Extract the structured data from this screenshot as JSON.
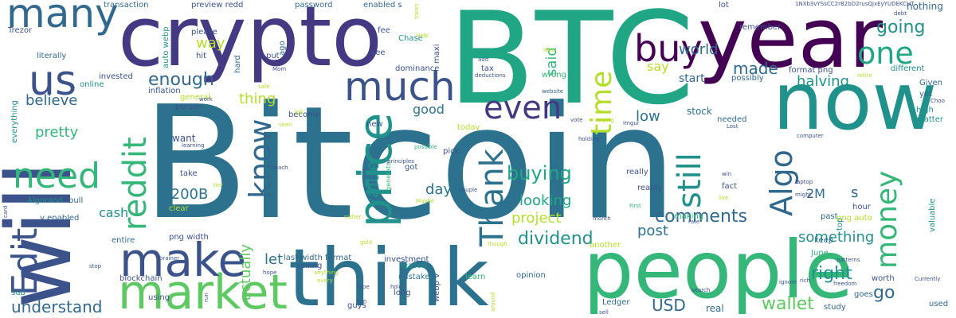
{
  "palette": {
    "dark_purple": "#440154",
    "indigo": "#3b528b",
    "blue": "#31688e",
    "teal": "#21918c",
    "green": "#35b779",
    "lime": "#5ec962",
    "yellow": "#b5de2b"
  },
  "words": [
    {
      "text": "Bitcoin",
      "color": "#2c728e"
    },
    {
      "text": "BTC",
      "color": "#21a685"
    },
    {
      "text": "will",
      "color": "#3b528b"
    },
    {
      "text": "crypto",
      "color": "#443983"
    },
    {
      "text": "year",
      "color": "#440154"
    },
    {
      "text": "now",
      "color": "#21918c"
    },
    {
      "text": "people",
      "color": "#35b779"
    },
    {
      "text": "think",
      "color": "#2c728e"
    },
    {
      "text": "market",
      "color": "#5ec962"
    },
    {
      "text": "make",
      "color": "#3b528b"
    },
    {
      "text": "price",
      "color": "#21918c"
    },
    {
      "text": "much",
      "color": "#3b528b"
    },
    {
      "text": "many",
      "color": "#31688e"
    },
    {
      "text": "us",
      "color": "#3b528b"
    },
    {
      "text": "need",
      "color": "#35b779"
    },
    {
      "text": "Edit",
      "color": "#3b528b"
    },
    {
      "text": "reddit",
      "color": "#35b779"
    },
    {
      "text": "know",
      "color": "#31688e"
    },
    {
      "text": "even",
      "color": "#443983"
    },
    {
      "text": "time",
      "color": "#b5de2b"
    },
    {
      "text": "buy",
      "color": "#440154"
    },
    {
      "text": "one",
      "color": "#21a685"
    },
    {
      "text": "Thank",
      "color": "#2c728e"
    },
    {
      "text": "still",
      "color": "#21918c"
    },
    {
      "text": "Algo",
      "color": "#31688e"
    },
    {
      "text": "money",
      "color": "#35b779"
    },
    {
      "text": "enough",
      "color": "#31688e"
    },
    {
      "text": "way",
      "color": "#b5de2b"
    },
    {
      "text": "going",
      "color": "#21918c"
    },
    {
      "text": "made",
      "color": "#31688e"
    },
    {
      "text": "halving",
      "color": "#21918c"
    },
    {
      "text": "world",
      "color": "#31688e"
    },
    {
      "text": "said",
      "color": "#35b779"
    },
    {
      "text": "buying",
      "color": "#21a685"
    },
    {
      "text": "comments",
      "color": "#31688e"
    },
    {
      "text": "dividend",
      "color": "#21918c"
    },
    {
      "text": "wallet",
      "color": "#5ec962"
    },
    {
      "text": "value",
      "color": "#21918c"
    },
    {
      "text": "let",
      "color": "#2c728e"
    },
    {
      "text": "actually",
      "color": "#5ec962"
    },
    {
      "text": "understand",
      "color": "#31688e"
    },
    {
      "text": "x200B",
      "color": "#2c728e"
    },
    {
      "text": "pretty",
      "color": "#35b779"
    },
    {
      "text": "believe",
      "color": "#31688e"
    },
    {
      "text": "good",
      "color": "#2c728e"
    },
    {
      "text": "thing",
      "color": "#b5de2b"
    },
    {
      "text": "looking",
      "color": "#21a685"
    },
    {
      "text": "project",
      "color": "#b5de2b"
    },
    {
      "text": "post",
      "color": "#2c728e"
    },
    {
      "text": "day",
      "color": "#2c728e"
    },
    {
      "text": "low",
      "color": "#2c728e"
    },
    {
      "text": "right",
      "color": "#21918c"
    },
    {
      "text": "go",
      "color": "#31688e"
    },
    {
      "text": "something",
      "color": "#21918c"
    },
    {
      "text": "USD",
      "color": "#31688e"
    },
    {
      "text": "cash",
      "color": "#21918c"
    },
    {
      "text": "2M",
      "color": "#31688e"
    },
    {
      "text": "s",
      "color": "#31688e"
    },
    {
      "text": "say",
      "color": "#b5de2b"
    },
    {
      "text": "start",
      "color": "#31688e"
    },
    {
      "text": "stock",
      "color": "#2c728e"
    },
    {
      "text": "nothing",
      "color": "#31688e"
    },
    {
      "text": "transaction",
      "color": "#31688e"
    },
    {
      "text": "preview redd",
      "color": "#3b528b"
    },
    {
      "text": "password",
      "color": "#31688e"
    },
    {
      "text": "enabled s",
      "color": "#31688e"
    },
    {
      "text": "please",
      "color": "#3b528b"
    },
    {
      "text": "hit",
      "color": "#3b528b"
    },
    {
      "text": "put",
      "color": "#3b528b"
    },
    {
      "text": "see",
      "color": "#3b528b"
    },
    {
      "text": "fee",
      "color": "#3b528b"
    },
    {
      "text": "Chase",
      "color": "#21918c"
    },
    {
      "text": "maxi",
      "color": "#3b528b"
    },
    {
      "text": "tax",
      "color": "#3b528b"
    },
    {
      "text": "dominance",
      "color": "#3b528b"
    },
    {
      "text": "wrong",
      "color": "#35b779"
    },
    {
      "text": "invested",
      "color": "#3b528b"
    },
    {
      "text": "online",
      "color": "#21918c"
    },
    {
      "text": "inflation",
      "color": "#3b528b"
    },
    {
      "text": "literally",
      "color": "#31688e"
    },
    {
      "text": "Trezor",
      "color": "#3b528b"
    },
    {
      "text": "Algorand",
      "color": "#21918c"
    },
    {
      "text": "bull",
      "color": "#31688e"
    },
    {
      "text": "v enabled",
      "color": "#31688e"
    },
    {
      "text": "entire",
      "color": "#31688e"
    },
    {
      "text": "blockchain",
      "color": "#3b528b"
    },
    {
      "text": "png width",
      "color": "#3b528b"
    },
    {
      "text": "last width format",
      "color": "#31688e"
    },
    {
      "text": "selling",
      "color": "#3b528b"
    },
    {
      "text": "investment",
      "color": "#3b528b"
    },
    {
      "text": "mistake",
      "color": "#2c728e"
    },
    {
      "text": "reason",
      "color": "#21918c"
    },
    {
      "text": "learn",
      "color": "#35b779"
    },
    {
      "text": "opinion",
      "color": "#31688e"
    },
    {
      "text": "webp v",
      "color": "#3b528b"
    },
    {
      "text": "long",
      "color": "#3b528b"
    },
    {
      "text": "guys",
      "color": "#3b528b"
    },
    {
      "text": "using",
      "color": "#3b528b"
    },
    {
      "text": "sub",
      "color": "#21918c"
    },
    {
      "text": "Ledger",
      "color": "#31688e"
    },
    {
      "text": "real",
      "color": "#31688e"
    },
    {
      "text": "study",
      "color": "#31688e"
    },
    {
      "text": "goes",
      "color": "#31688e"
    },
    {
      "text": "worth",
      "color": "#3b528b"
    },
    {
      "text": "used",
      "color": "#31688e"
    },
    {
      "text": "June",
      "color": "#35b779"
    },
    {
      "text": "keep",
      "color": "#31688e"
    },
    {
      "text": "past",
      "color": "#31688e"
    },
    {
      "text": "top",
      "color": "#21918c"
    },
    {
      "text": "hour",
      "color": "#3b528b"
    },
    {
      "text": "fact",
      "color": "#3b528b"
    },
    {
      "text": "reality",
      "color": "#3b528b"
    },
    {
      "text": "really",
      "color": "#3b528b"
    },
    {
      "text": "making",
      "color": "#35b779"
    },
    {
      "text": "needed",
      "color": "#31688e"
    },
    {
      "text": "different",
      "color": "#21918c"
    },
    {
      "text": "possibly",
      "color": "#31688e"
    },
    {
      "text": "Given",
      "color": "#31688e"
    },
    {
      "text": "high",
      "color": "#21918c"
    },
    {
      "text": "matter",
      "color": "#21918c"
    },
    {
      "text": "yet",
      "color": "#31688e"
    },
    {
      "text": "valuable",
      "color": "#21918c"
    },
    {
      "text": "format png",
      "color": "#3b528b"
    },
    {
      "text": "lot",
      "color": "#3b528b"
    },
    {
      "text": "remember",
      "color": "#3b528b"
    },
    {
      "text": "general",
      "color": "#b5de2b"
    },
    {
      "text": "person",
      "color": "#3b528b"
    },
    {
      "text": "want",
      "color": "#3b528b"
    },
    {
      "text": "take",
      "color": "#3b528b"
    },
    {
      "text": "clear",
      "color": "#b5de2b"
    },
    {
      "text": "today",
      "color": "#b5de2b"
    },
    {
      "text": "pick",
      "color": "#3b528b"
    },
    {
      "text": "got",
      "color": "#3b528b"
    },
    {
      "text": "new",
      "color": "#3b528b"
    },
    {
      "text": "become",
      "color": "#3b528b"
    },
    {
      "text": "auto webp",
      "color": "#21918c"
    },
    {
      "text": "ago",
      "color": "#31688e"
    },
    {
      "text": "hard",
      "color": "#31688e"
    },
    {
      "text": "everything",
      "color": "#21918c"
    },
    {
      "text": "png auto",
      "color": "#b5de2b"
    },
    {
      "text": "another",
      "color": "#b5de2b"
    },
    {
      "text": "1NXb3vYSsCC2rB2bD2rusQjxEyYUDEKCHT",
      "color": "#3b528b"
    },
    {
      "text": "generator",
      "color": "#35b779"
    },
    {
      "text": "Mom",
      "color": "#3b528b"
    },
    {
      "text": "token",
      "color": "#b5de2b"
    },
    {
      "text": "Help",
      "color": "#b5de2b"
    },
    {
      "text": "add",
      "color": "#3b528b"
    },
    {
      "text": "deductions",
      "color": "#3b528b"
    },
    {
      "text": "idea",
      "color": "#b5de2b"
    },
    {
      "text": "website",
      "color": "#31688e"
    },
    {
      "text": "debt",
      "color": "#3b528b"
    },
    {
      "text": "retire",
      "color": "#b5de2b"
    },
    {
      "text": "Choo",
      "color": "#3b528b"
    },
    {
      "text": "safe",
      "color": "#b5de2b"
    },
    {
      "text": "work",
      "color": "#3b528b"
    },
    {
      "text": "seen",
      "color": "#b5de2b"
    },
    {
      "text": "job",
      "color": "#b5de2b"
    },
    {
      "text": "learning",
      "color": "#3b528b"
    },
    {
      "text": "vote",
      "color": "#3b528b"
    },
    {
      "text": "trying",
      "color": "#b5de2b"
    },
    {
      "text": "Imgur",
      "color": "#3b528b"
    },
    {
      "text": "Lost",
      "color": "#3b528b"
    },
    {
      "text": "holding",
      "color": "#3b528b"
    },
    {
      "text": "computer",
      "color": "#3b528b"
    },
    {
      "text": "principles",
      "color": "#3b528b"
    },
    {
      "text": "possible",
      "color": "#35b779"
    },
    {
      "text": "reach",
      "color": "#3b528b"
    },
    {
      "text": "couple",
      "color": "#3b528b"
    },
    {
      "text": "Maybe",
      "color": "#b5de2b"
    },
    {
      "text": "tier",
      "color": "#b5de2b"
    },
    {
      "text": "win",
      "color": "#3b528b"
    },
    {
      "text": "laptop",
      "color": "#3b528b"
    },
    {
      "text": "live",
      "color": "#b5de2b"
    },
    {
      "text": "might",
      "color": "#3b528b"
    },
    {
      "text": "card",
      "color": "#3b528b"
    },
    {
      "text": "rather",
      "color": "#b5de2b"
    },
    {
      "text": "First",
      "color": "#35b779"
    },
    {
      "text": "month",
      "color": "#3b528b"
    },
    {
      "text": "rate",
      "color": "#3b528b"
    },
    {
      "text": "patterns",
      "color": "#3b528b"
    },
    {
      "text": "gold",
      "color": "#b5de2b"
    },
    {
      "text": "though",
      "color": "#b5de2b"
    },
    {
      "text": "brainer",
      "color": "#3b528b"
    },
    {
      "text": "stop",
      "color": "#3b528b"
    },
    {
      "text": "hope",
      "color": "#3b528b"
    },
    {
      "text": "anything",
      "color": "#b5de2b"
    },
    {
      "text": "every",
      "color": "#b5de2b"
    },
    {
      "text": "type",
      "color": "#3b528b"
    },
    {
      "text": "hold",
      "color": "#3b528b"
    },
    {
      "text": "son",
      "color": "#3b528b"
    },
    {
      "text": "run",
      "color": "#3b528b"
    },
    {
      "text": "around",
      "color": "#b5de2b"
    },
    {
      "text": "sell",
      "color": "#3b528b"
    },
    {
      "text": "rich",
      "color": "#3b528b"
    },
    {
      "text": "freedom",
      "color": "#3b528b"
    },
    {
      "text": "search",
      "color": "#3b528b"
    },
    {
      "text": "ignore",
      "color": "#3b528b"
    },
    {
      "text": "Currently",
      "color": "#3b528b"
    }
  ]
}
